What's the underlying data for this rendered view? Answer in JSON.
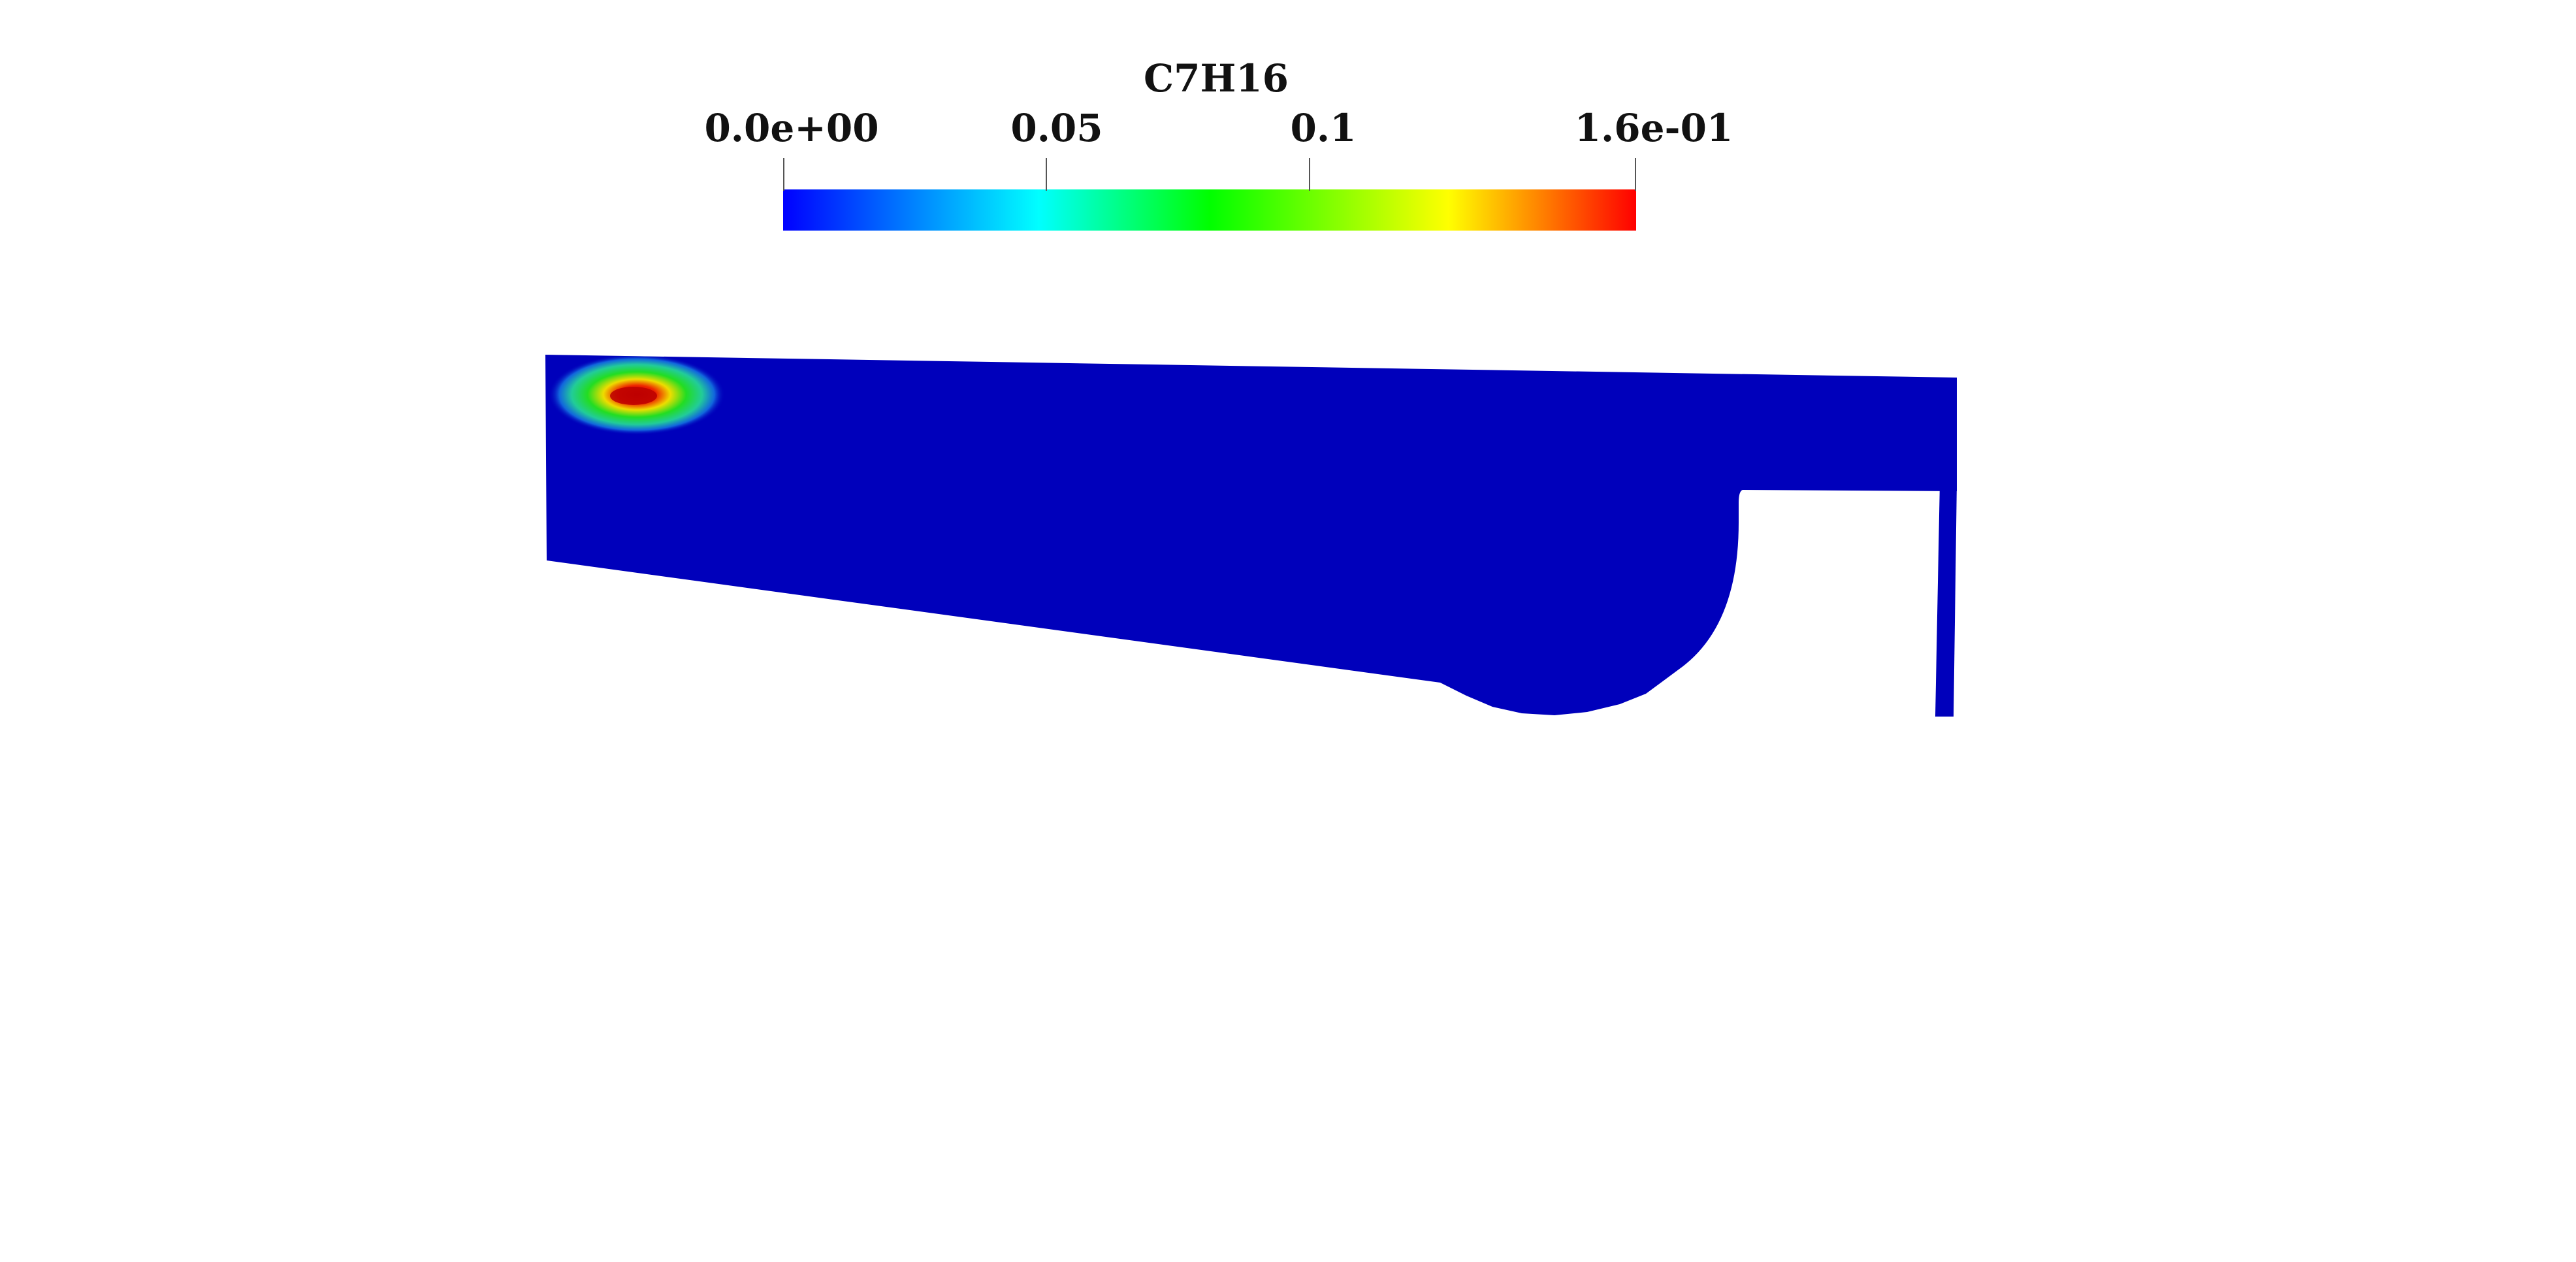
{
  "scalar_bar": {
    "title": "C7H16",
    "range": [
      0.0,
      0.16
    ],
    "colormap": "rainbow",
    "colormap_stops": [
      "#0000ff",
      "#00ffff",
      "#00ff00",
      "#ffff00",
      "#ff0000"
    ],
    "ticks": [
      {
        "label": "0.0e+00",
        "value": 0.0
      },
      {
        "label": "0.05",
        "value": 0.05
      },
      {
        "label": "0.1",
        "value": 0.1
      },
      {
        "label": "1.6e-01",
        "value": 0.16
      }
    ]
  },
  "field": {
    "background_color": "#0000bb",
    "hotspot_peak_color": "#cc0000"
  }
}
